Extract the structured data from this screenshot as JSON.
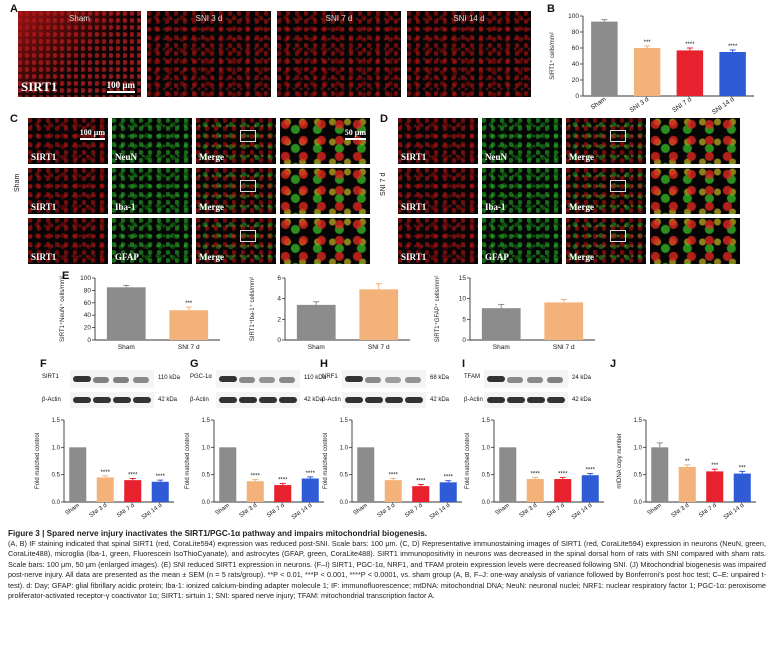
{
  "panel_letters": {
    "a": "A",
    "b": "B",
    "c": "C",
    "d": "D",
    "e": "E",
    "f": "F",
    "g": "G",
    "h": "H",
    "i": "I",
    "j": "J"
  },
  "panel_a": {
    "conditions": [
      "Sham",
      "SNI 3 d",
      "SNI 7 d",
      "SNI 14 d"
    ],
    "marker": "SIRT1",
    "scale_bar": "100 μm"
  },
  "panel_c": {
    "row_label": "Sham",
    "scale_bar": "100 μm",
    "zoom_scale_bar": "50 μm",
    "rows": [
      {
        "red": "SIRT1",
        "green": "NeuN",
        "merge": "Merge"
      },
      {
        "red": "SIRT1",
        "green": "Iba-1",
        "merge": "Merge"
      },
      {
        "red": "SIRT1",
        "green": "GFAP",
        "merge": "Merge"
      }
    ]
  },
  "panel_d": {
    "row_label": "SNI 7 d",
    "rows": [
      {
        "red": "SIRT1",
        "green": "NeuN",
        "merge": "Merge"
      },
      {
        "red": "SIRT1",
        "green": "Iba-1",
        "merge": "Merge"
      },
      {
        "red": "SIRT1",
        "green": "GFAP",
        "merge": "Merge"
      }
    ]
  },
  "blots": {
    "f": {
      "target": "SIRT1",
      "target_kda": "110 kDa",
      "loading": "β-Actin",
      "loading_kda": "42 kDa"
    },
    "g": {
      "target": "PGC-1α",
      "target_kda": "110 kDa",
      "loading": "β-Actin",
      "loading_kda": "42 kDa"
    },
    "h": {
      "target": "NRF1",
      "target_kda": "68 kDa",
      "loading": "β-Actin",
      "loading_kda": "42 kDa"
    },
    "i": {
      "target": "TFAM",
      "target_kda": "24 kDa",
      "loading": "β-Actin",
      "loading_kda": "42 kDa"
    }
  },
  "chart_data": [
    {
      "id": "B",
      "type": "bar",
      "categories": [
        "Sham",
        "SNI 3 d",
        "SNI 7 d",
        "SNI 14 d"
      ],
      "values": [
        93,
        60,
        57,
        55
      ],
      "errors": [
        2.5,
        2.5,
        3,
        2.5
      ],
      "significance": [
        "",
        "***",
        "****",
        "****"
      ],
      "ylabel": "SIRT1⁺ cells/mm²",
      "ylim": [
        0,
        100
      ],
      "yticks": [
        0,
        20,
        40,
        60,
        80,
        100
      ],
      "colors": [
        "#8c8c8c",
        "#f2b279",
        "#e8212e",
        "#2f5bd6"
      ]
    },
    {
      "id": "E1",
      "type": "bar",
      "categories": [
        "Sham",
        "SNI 7 d"
      ],
      "values": [
        85,
        48
      ],
      "errors": [
        3,
        5
      ],
      "significance": [
        "",
        "***"
      ],
      "ylabel": "SIRT1⁺NeuN⁺ cells/mm²",
      "ylim": [
        0,
        100
      ],
      "yticks": [
        0,
        20,
        40,
        60,
        80,
        100
      ],
      "colors": [
        "#8c8c8c",
        "#f2b279"
      ]
    },
    {
      "id": "E2",
      "type": "bar",
      "categories": [
        "Sham",
        "SNI 7 d"
      ],
      "values": [
        3.4,
        4.9
      ],
      "errors": [
        0.3,
        0.55
      ],
      "significance": [
        "",
        ""
      ],
      "ylabel": "SIRT1⁺Iba-1⁺ cells/mm²",
      "ylim": [
        0,
        6
      ],
      "yticks": [
        0,
        2,
        4,
        6
      ],
      "colors": [
        "#8c8c8c",
        "#f2b279"
      ]
    },
    {
      "id": "E3",
      "type": "bar",
      "categories": [
        "Sham",
        "SNI 7 d"
      ],
      "values": [
        7.7,
        9.1
      ],
      "errors": [
        0.9,
        0.7
      ],
      "significance": [
        "",
        ""
      ],
      "ylabel": "SIRT1⁺GFAP⁺ cells/mm²",
      "ylim": [
        0,
        15
      ],
      "yticks": [
        0,
        5,
        10,
        15
      ],
      "colors": [
        "#8c8c8c",
        "#f2b279"
      ]
    },
    {
      "id": "F",
      "type": "bar",
      "categories": [
        "Sham",
        "SNI 3 d",
        "SNI 7 d",
        "SNI 14 d"
      ],
      "values": [
        1.0,
        0.45,
        0.4,
        0.37
      ],
      "errors": [
        0,
        0.03,
        0.03,
        0.03
      ],
      "significance": [
        "",
        "****",
        "****",
        "****"
      ],
      "ylabel": "Fold matched control",
      "ylim": [
        0,
        1.5
      ],
      "yticks": [
        0.0,
        0.5,
        1.0,
        1.5
      ],
      "colors": [
        "#8c8c8c",
        "#f2b279",
        "#e8212e",
        "#2f5bd6"
      ]
    },
    {
      "id": "G",
      "type": "bar",
      "categories": [
        "Sham",
        "SNI 3 d",
        "SNI 7 d",
        "SNI 14 d"
      ],
      "values": [
        1.0,
        0.38,
        0.31,
        0.43
      ],
      "errors": [
        0,
        0.03,
        0.03,
        0.03
      ],
      "significance": [
        "",
        "****",
        "****",
        "****"
      ],
      "ylabel": "Fold matched control",
      "ylim": [
        0,
        1.5
      ],
      "yticks": [
        0.0,
        0.5,
        1.0,
        1.5
      ],
      "colors": [
        "#8c8c8c",
        "#f2b279",
        "#e8212e",
        "#2f5bd6"
      ]
    },
    {
      "id": "H",
      "type": "bar",
      "categories": [
        "Sham",
        "SNI 3 d",
        "SNI 7 d",
        "SNI 14 d"
      ],
      "values": [
        1.0,
        0.4,
        0.29,
        0.36
      ],
      "errors": [
        0,
        0.03,
        0.03,
        0.03
      ],
      "significance": [
        "",
        "****",
        "****",
        "****"
      ],
      "ylabel": "Fold matched control",
      "ylim": [
        0,
        1.5
      ],
      "yticks": [
        0.0,
        0.5,
        1.0,
        1.5
      ],
      "colors": [
        "#8c8c8c",
        "#f2b279",
        "#e8212e",
        "#2f5bd6"
      ]
    },
    {
      "id": "I",
      "type": "bar",
      "categories": [
        "Sham",
        "SNI 3 d",
        "SNI 7 d",
        "SNI 14 d"
      ],
      "values": [
        1.0,
        0.42,
        0.42,
        0.49
      ],
      "errors": [
        0,
        0.03,
        0.03,
        0.03
      ],
      "significance": [
        "",
        "****",
        "****",
        "****"
      ],
      "ylabel": "Fold matched control",
      "ylim": [
        0,
        1.5
      ],
      "yticks": [
        0.0,
        0.5,
        1.0,
        1.5
      ],
      "colors": [
        "#8c8c8c",
        "#f2b279",
        "#e8212e",
        "#2f5bd6"
      ]
    },
    {
      "id": "J",
      "type": "bar",
      "categories": [
        "Sham",
        "SNI 3 d",
        "SNI 7 d",
        "SNI 14 d"
      ],
      "values": [
        1.0,
        0.64,
        0.56,
        0.52
      ],
      "errors": [
        0.08,
        0.04,
        0.04,
        0.04
      ],
      "significance": [
        "",
        "**",
        "***",
        "***"
      ],
      "ylabel": "mtDNA copy number",
      "ylim": [
        0,
        1.5
      ],
      "yticks": [
        0.0,
        0.5,
        1.0,
        1.5
      ],
      "colors": [
        "#8c8c8c",
        "#f2b279",
        "#e8212e",
        "#2f5bd6"
      ]
    }
  ],
  "caption": {
    "title": "Figure 3 | Spared nerve injury inactivates the SIRT1/PGC-1α pathway and impairs mitochondrial biogenesis.",
    "body": "(A, B) IF staining indicated that spinal SIRT1 (red, CoraLite594) expression was reduced post-SNI. Scale bars: 100 μm. (C, D) Representative immunostaining images of SIRT1 (red, CoraLite594) expression in neurons (NeuN, green, CoraLite488), microglia (Iba-1, green, Fluorescein IsoThioCyanate), and astrocytes (GFAP, green, CoraLite488). SIRT1 immunopositivity in neurons was decreased in the spinal dorsal horn of rats with SNI compared with sham rats. Scale bars: 100 μm, 50 μm (enlarged images). (E) SNI reduced SIRT1 expression in neurons. (F–I) SIRT1, PGC-1α, NRF1, and TFAM protein expression levels were decreased following SNI. (J) Mitochondrial biogenesis was impaired post-nerve injury. All data are presented as the mean ± SEM (n = 5 rats/group). **P < 0.01, ***P < 0.001, ****P < 0.0001, vs. sham group (A, B, F–J: one-way analysis of variance followed by Bonferroni's post hoc test; C–E: unpaired t-test). d: Day; GFAP: glial fibrillary acidic protein; Iba-1: ionized calcium-binding adapter molecule 1; IF: immunofluorescence; mtDNA: mitochondrial DNA; NeuN: neuronal nuclei; NRF1: nuclear respiratory factor 1; PGC-1α: peroxisome proliferator-activated receptor-γ coactivator 1α; SIRT1: sirtuin 1; SNI: spared nerve injury; TFAM: mitochondrial transcription factor A."
  }
}
